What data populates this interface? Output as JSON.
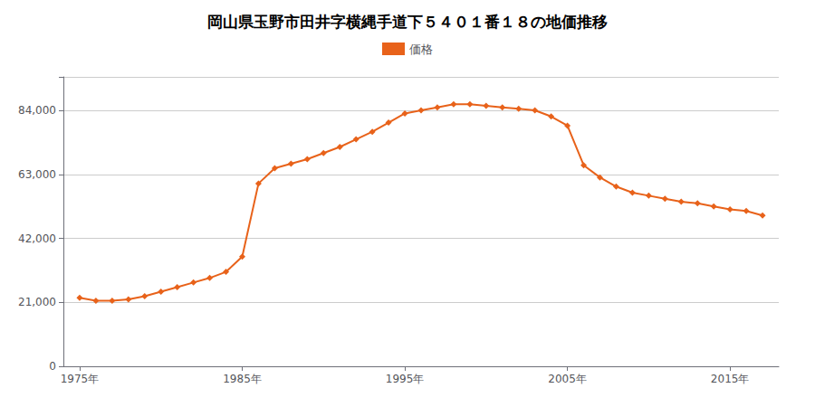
{
  "chart_data": {
    "type": "line",
    "title": "岡山県玉野市田井字横縄手道下５４０１番１８の地価推移",
    "x": [
      1975,
      1976,
      1977,
      1978,
      1979,
      1980,
      1981,
      1982,
      1983,
      1984,
      1985,
      1986,
      1987,
      1988,
      1989,
      1990,
      1991,
      1992,
      1993,
      1994,
      1995,
      1996,
      1997,
      1998,
      1999,
      2000,
      2001,
      2002,
      2003,
      2004,
      2005,
      2006,
      2007,
      2008,
      2009,
      2010,
      2011,
      2012,
      2013,
      2014,
      2015,
      2016,
      2017
    ],
    "series": [
      {
        "name": "価格",
        "color": "#E8621A",
        "marker": "diamond",
        "values": [
          22500,
          21500,
          21500,
          22000,
          23000,
          24500,
          26000,
          27500,
          29000,
          31000,
          36000,
          60000,
          65000,
          66500,
          68000,
          70000,
          72000,
          74500,
          77000,
          80000,
          83000,
          84000,
          85000,
          86000,
          86000,
          85500,
          85000,
          84500,
          84000,
          82000,
          79000,
          66000,
          62000,
          59000,
          57000,
          56000,
          55000,
          54000,
          53500,
          52500,
          51500,
          51000,
          49500
        ]
      }
    ],
    "xlim": [
      1974,
      2018
    ],
    "xticks": [
      {
        "value": 1975,
        "label": "1975年"
      },
      {
        "value": 1985,
        "label": "1985年"
      },
      {
        "value": 1995,
        "label": "1995年"
      },
      {
        "value": 2005,
        "label": "2005年"
      },
      {
        "value": 2015,
        "label": "2015年"
      }
    ],
    "ylim": [
      0,
      95000
    ],
    "yticks": [
      0,
      {
        "value": 21000,
        "label": "21,000"
      },
      {
        "value": 42000,
        "label": "42,000"
      },
      {
        "value": 63000,
        "label": "63,000"
      },
      {
        "value": 84000,
        "label": "84,000"
      }
    ],
    "grid": true,
    "legend": "top"
  }
}
